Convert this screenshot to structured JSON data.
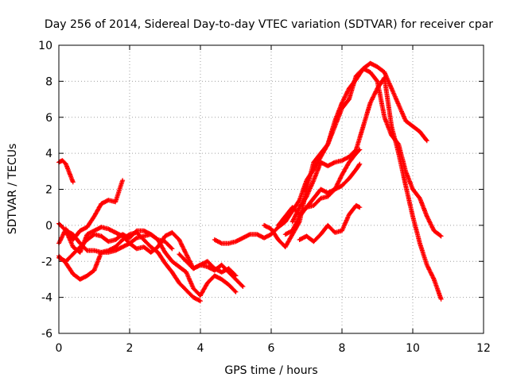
{
  "chart_data": {
    "type": "scatter",
    "title": "Day 256 of 2014, Sidereal Day-to-day VTEC variation (SDTVAR) for receiver cpar",
    "xlabel": "GPS time / hours",
    "ylabel": "SDTVAR / TECUs",
    "xlim": [
      0,
      12
    ],
    "ylim": [
      -6,
      10
    ],
    "xticks": [
      0,
      2,
      4,
      6,
      8,
      10,
      12
    ],
    "yticks": [
      -6,
      -4,
      -2,
      0,
      2,
      4,
      6,
      8,
      10
    ],
    "grid": true,
    "marker": "+",
    "series_color": "#ff0000",
    "series": [
      {
        "name": "s1",
        "x": [
          0.0,
          0.1,
          0.2,
          0.3,
          0.4
        ],
        "y": [
          3.5,
          3.6,
          3.4,
          2.9,
          2.4
        ]
      },
      {
        "name": "s2",
        "x": [
          0.0,
          0.2,
          0.4,
          0.6,
          0.8,
          1.0,
          1.2,
          1.4,
          1.6,
          1.8
        ],
        "y": [
          -1.0,
          -0.2,
          -0.8,
          -0.3,
          -0.1,
          0.5,
          1.2,
          1.4,
          1.3,
          2.5
        ]
      },
      {
        "name": "s3",
        "x": [
          0.0,
          0.2,
          0.4,
          0.6,
          0.8,
          1.0,
          1.2,
          1.4,
          1.6,
          1.8,
          2.0,
          2.2,
          2.4,
          2.6,
          2.8,
          3.0,
          3.2,
          3.4,
          3.6,
          3.8,
          4.0,
          4.2,
          4.4,
          4.6,
          4.8,
          5.0,
          5.2
        ],
        "y": [
          0.1,
          -0.3,
          -1.2,
          -1.5,
          -0.5,
          -0.3,
          -0.1,
          -0.2,
          -0.4,
          -0.6,
          -1.0,
          -1.3,
          -1.2,
          -1.5,
          -1.2,
          -0.6,
          -0.4,
          -0.8,
          -1.6,
          -2.4,
          -2.2,
          -2.3,
          -2.5,
          -2.2,
          -2.6,
          -3.0,
          -3.4
        ]
      },
      {
        "name": "s4",
        "x": [
          0.0,
          0.2,
          0.4,
          0.6,
          0.8,
          1.0,
          1.2,
          1.4,
          1.6,
          1.8,
          2.0,
          2.2,
          2.4,
          2.6,
          2.8,
          3.0,
          3.2,
          3.4,
          3.6,
          3.8,
          4.0,
          4.2,
          4.4,
          4.6,
          4.8,
          5.0
        ],
        "y": [
          -1.8,
          -2.0,
          -1.6,
          -1.2,
          -0.8,
          -0.5,
          -0.6,
          -0.9,
          -0.8,
          -0.5,
          -0.7,
          -0.3,
          -0.3,
          -0.5,
          -0.8,
          -1.5,
          -2.0,
          -2.3,
          -2.6,
          -3.5,
          -3.9,
          -3.2,
          -2.8,
          -3.0,
          -3.3,
          -3.7
        ]
      },
      {
        "name": "s5",
        "x": [
          0.0,
          0.2,
          0.4,
          0.6,
          0.8,
          1.0,
          1.2,
          1.4,
          1.6,
          1.8,
          2.0,
          2.2,
          2.4,
          2.6,
          2.8,
          3.0,
          3.2,
          3.4,
          3.6,
          3.8,
          4.0
        ],
        "y": [
          -1.7,
          -2.1,
          -2.7,
          -3.0,
          -2.8,
          -2.5,
          -1.5,
          -1.4,
          -1.2,
          -0.8,
          -0.5,
          -0.4,
          -0.8,
          -1.2,
          -1.5,
          -2.1,
          -2.6,
          -3.2,
          -3.6,
          -4.0,
          -4.2
        ]
      },
      {
        "name": "s6",
        "x": [
          0.2,
          0.4,
          0.6,
          0.8,
          1.0,
          1.2,
          1.4,
          1.6,
          1.8,
          2.0,
          2.2,
          2.4,
          2.6,
          2.8,
          3.0,
          3.2
        ],
        "y": [
          -0.3,
          -0.5,
          -1.0,
          -1.4,
          -1.4,
          -1.5,
          -1.5,
          -1.4,
          -1.2,
          -1.0,
          -0.7,
          -0.6,
          -0.5,
          -0.8,
          -0.9,
          -1.3
        ]
      },
      {
        "name": "s7",
        "x": [
          3.4,
          3.6,
          3.8,
          4.0,
          4.2,
          4.4,
          4.6,
          4.8,
          5.0
        ],
        "y": [
          -1.6,
          -2.0,
          -2.4,
          -2.2,
          -2.0,
          -2.4,
          -2.6,
          -2.4,
          -2.8
        ]
      },
      {
        "name": "s8",
        "x": [
          4.4,
          4.6,
          4.8,
          5.0,
          5.2,
          5.4,
          5.6,
          5.8,
          6.0,
          6.2,
          6.4,
          6.6,
          6.8,
          7.0,
          7.2,
          7.4,
          7.6,
          7.8,
          8.0,
          8.2,
          8.4,
          8.6,
          8.8,
          9.0,
          9.2,
          9.4,
          9.6,
          9.8,
          10.0,
          10.2,
          10.4
        ],
        "y": [
          -0.8,
          -1.0,
          -1.0,
          -0.9,
          -0.7,
          -0.5,
          -0.5,
          -0.7,
          -0.5,
          -0.1,
          0.2,
          0.8,
          1.4,
          2.5,
          3.1,
          3.8,
          4.5,
          5.8,
          6.8,
          7.6,
          8.1,
          8.7,
          9.0,
          8.8,
          8.5,
          7.6,
          6.7,
          5.8,
          5.5,
          5.2,
          4.7
        ]
      },
      {
        "name": "s9",
        "x": [
          5.8,
          6.0,
          6.2,
          6.4,
          6.6,
          6.8,
          7.0,
          7.2,
          7.4,
          7.6,
          7.8,
          8.0,
          8.2,
          8.4,
          8.6,
          8.8,
          9.0,
          9.2,
          9.4,
          9.6,
          9.8,
          10.0,
          10.2,
          10.4,
          10.6,
          10.8
        ],
        "y": [
          0.0,
          -0.2,
          -0.8,
          -1.2,
          -0.5,
          0.2,
          2.0,
          3.5,
          4.0,
          4.5,
          5.5,
          6.5,
          7.0,
          8.3,
          8.7,
          8.5,
          8.0,
          6.0,
          5.0,
          4.5,
          3.0,
          2.0,
          1.5,
          0.5,
          -0.3,
          -0.6
        ]
      },
      {
        "name": "s10",
        "x": [
          6.6,
          6.8,
          7.0,
          7.2,
          7.4,
          7.6,
          7.8,
          8.0,
          8.2,
          8.4,
          8.6,
          8.8,
          9.0,
          9.2,
          9.4,
          9.6,
          9.8,
          10.0,
          10.2,
          10.4,
          10.6,
          10.8
        ],
        "y": [
          0.2,
          1.0,
          1.6,
          2.5,
          3.5,
          3.3,
          3.5,
          3.6,
          3.8,
          4.2,
          5.5,
          6.8,
          7.6,
          8.2,
          5.5,
          4.0,
          2.2,
          0.5,
          -1.0,
          -2.2,
          -3.0,
          -4.1
        ]
      },
      {
        "name": "s11",
        "x": [
          6.4,
          6.6,
          6.8,
          7.0,
          7.2,
          7.4,
          7.6,
          7.8,
          8.0,
          8.2,
          8.4,
          8.5
        ],
        "y": [
          -0.5,
          -0.3,
          0.5,
          1.0,
          1.5,
          2.0,
          1.8,
          2.0,
          2.8,
          3.5,
          4.0,
          4.2
        ]
      },
      {
        "name": "s12",
        "x": [
          6.2,
          6.4,
          6.6,
          6.8,
          7.0,
          7.2,
          7.4,
          7.6,
          7.8,
          8.0,
          8.2,
          8.4,
          8.5
        ],
        "y": [
          0.0,
          0.5,
          1.0,
          0.6,
          1.0,
          1.1,
          1.5,
          1.6,
          2.0,
          2.2,
          2.6,
          3.1,
          3.4
        ]
      },
      {
        "name": "s13",
        "x": [
          6.8,
          7.0,
          7.2,
          7.4,
          7.6,
          7.8,
          8.0,
          8.2,
          8.4,
          8.5
        ],
        "y": [
          -0.8,
          -0.6,
          -0.9,
          -0.5,
          0.0,
          -0.4,
          -0.3,
          0.6,
          1.1,
          1.0
        ]
      }
    ]
  }
}
